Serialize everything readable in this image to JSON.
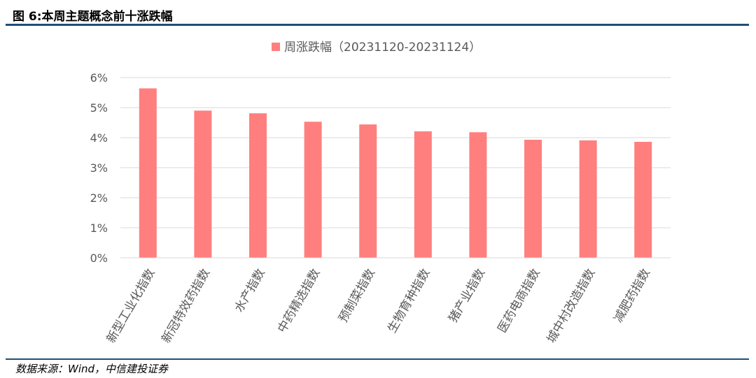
{
  "figure": {
    "title": "图 6:本周主题概念前十涨跌幅",
    "source": "数据来源：Wind，中信建投证券"
  },
  "colors": {
    "bar": "#ff7f7f",
    "grid": "#d9d9d9",
    "rule": "#1f4e79",
    "text": "#595959"
  },
  "chart_data": {
    "type": "bar",
    "title": "",
    "xlabel": "",
    "ylabel": "",
    "categories": [
      "新型工业化指数",
      "新冠特效药指数",
      "水产指数",
      "中药精选指数",
      "预制菜指数",
      "生物育种指数",
      "猪产业指数",
      "医药电商指数",
      "城中村改造指数",
      "减肥药指数"
    ],
    "series": [
      {
        "name": "周涨跌幅（20231120-20231124）",
        "values": [
          5.64,
          4.9,
          4.81,
          4.53,
          4.44,
          4.21,
          4.18,
          3.93,
          3.91,
          3.86
        ]
      }
    ],
    "unit": "%",
    "ylim": [
      0,
      6
    ],
    "yticks": [
      "0%",
      "1%",
      "2%",
      "3%",
      "4%",
      "5%",
      "6%"
    ],
    "grid": true,
    "legend_position": "top-center"
  }
}
